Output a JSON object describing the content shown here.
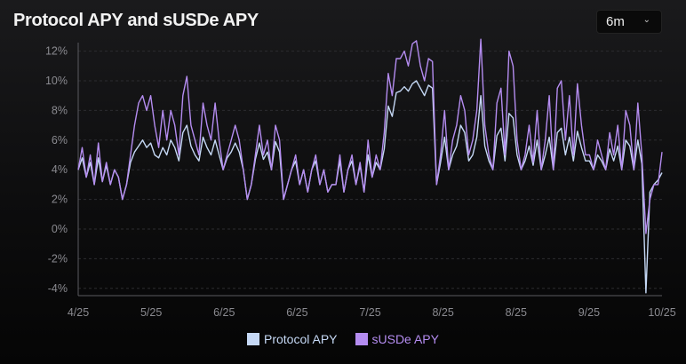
{
  "title": "Protocol APY and sUSDe APY",
  "range_selector": {
    "value": "6m"
  },
  "chart_data": {
    "type": "line",
    "title": "Protocol APY and sUSDe APY",
    "xlabel": "",
    "ylabel": "",
    "ylim": [
      -4.8,
      13
    ],
    "y_ticks": [
      12,
      10,
      8,
      6,
      4,
      2,
      0,
      -2,
      -4
    ],
    "y_tick_labels": [
      "12%",
      "10%",
      "8%",
      "6%",
      "4%",
      "2%",
      "0%",
      "-2%",
      "-4%"
    ],
    "x_tick_labels": [
      "4/25",
      "5/25",
      "6/25",
      "6/25",
      "7/25",
      "8/25",
      "8/25",
      "9/25",
      "10/25"
    ],
    "grid": "horizontal dashed",
    "legend": "bottom",
    "series": [
      {
        "name": "Protocol APY",
        "color": "#c5d8f5",
        "values": [
          4,
          4.8,
          3.5,
          4.5,
          3,
          4.8,
          3.2,
          4.3,
          3,
          4,
          3.5,
          2,
          3,
          4.5,
          5.2,
          5.6,
          6,
          5.5,
          5.8,
          5,
          4.8,
          5.5,
          5,
          6,
          5.5,
          4.6,
          6.5,
          7,
          5.6,
          5,
          4.6,
          6.2,
          5.5,
          5,
          6,
          5,
          4,
          4.8,
          5.2,
          5.8,
          5.2,
          4,
          2,
          3,
          4.7,
          5.8,
          4.7,
          5.2,
          4,
          5.9,
          5.2,
          2,
          3,
          4,
          4.6,
          3,
          4,
          2.5,
          4,
          4.6,
          3,
          4,
          2.5,
          3,
          3,
          4.6,
          2.5,
          4,
          4.6,
          3,
          4.3,
          2.5,
          5,
          3.5,
          4.5,
          4,
          5.4,
          8.3,
          7.6,
          9.2,
          9.3,
          9.6,
          9.3,
          9.8,
          10,
          9.5,
          9,
          9.7,
          9.5,
          3,
          4.5,
          6.2,
          4,
          5,
          5.6,
          7,
          6.5,
          4.6,
          5,
          6.2,
          9,
          5.6,
          4.6,
          4,
          6.3,
          6.8,
          4.6,
          7.8,
          7.5,
          5,
          4,
          4.6,
          5.6,
          4.3,
          6,
          4,
          5,
          6.2,
          4,
          6.5,
          6.8,
          5,
          6.2,
          4.6,
          6.6,
          5.5,
          4.6,
          4.6,
          4,
          5,
          4.6,
          4,
          5.4,
          4.6,
          5.6,
          4,
          6,
          5.6,
          4,
          6,
          4.4,
          -4.3,
          2.5,
          3,
          3.3,
          3.8
        ]
      },
      {
        "name": "sUSDe APY",
        "color": "#b48cf0",
        "values": [
          4,
          5.5,
          3.5,
          5,
          3,
          5.8,
          3.2,
          4.5,
          3,
          4,
          3.5,
          2,
          3,
          5,
          7,
          8.5,
          9,
          8,
          9,
          7,
          5.5,
          8,
          6,
          8,
          7,
          5,
          9,
          10.3,
          7,
          6,
          5,
          8.5,
          7,
          6,
          8.5,
          6,
          4,
          5,
          6,
          7,
          6,
          4,
          2,
          3,
          5,
          7,
          5,
          6,
          4,
          7,
          6,
          2,
          3,
          4,
          5,
          3,
          4,
          2.5,
          4,
          5,
          3,
          4,
          2.5,
          3,
          3,
          5,
          2.5,
          4,
          5,
          3,
          4.5,
          2.5,
          6,
          3.5,
          5,
          4,
          6.5,
          10.5,
          9,
          11.5,
          11.5,
          12,
          11,
          12.5,
          12.7,
          11,
          10,
          11.5,
          11.3,
          3,
          5,
          8,
          4,
          6,
          7,
          9,
          8,
          5,
          6,
          8,
          12.8,
          7,
          5,
          4,
          8.5,
          9.5,
          5,
          12,
          11,
          6,
          4,
          5,
          7,
          4.5,
          8,
          4,
          6,
          9,
          4,
          9.5,
          10,
          6,
          9,
          5,
          9.8,
          7,
          5,
          5,
          4,
          6,
          5,
          4,
          6.5,
          5,
          7,
          4,
          8,
          7,
          4,
          8.5,
          5,
          -0.3,
          2,
          3,
          3,
          5.2
        ]
      }
    ]
  }
}
